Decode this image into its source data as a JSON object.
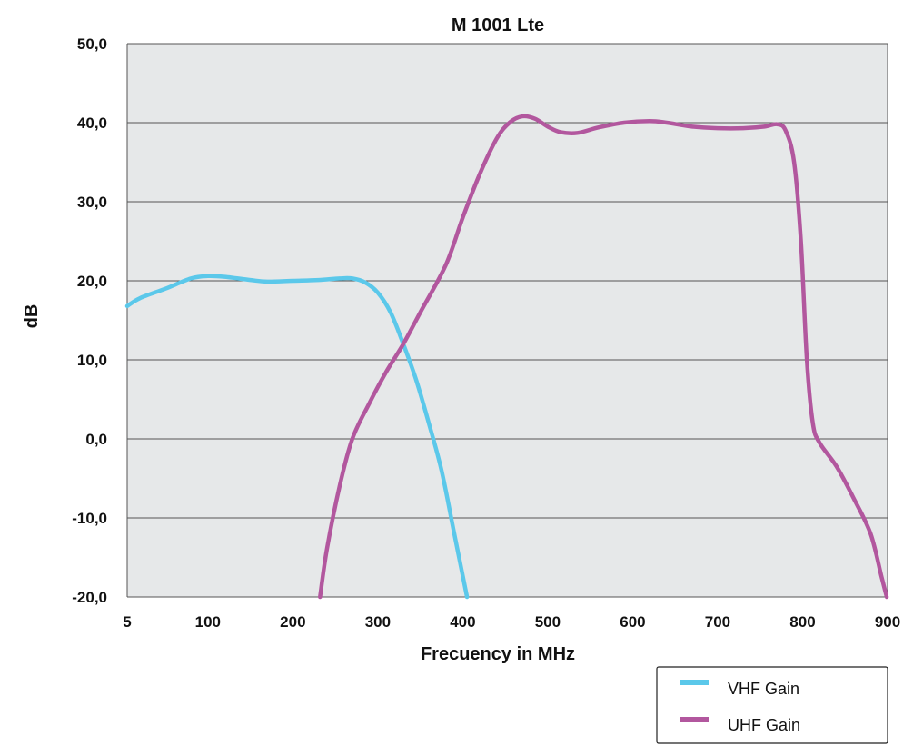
{
  "chart_data": {
    "type": "line",
    "title": "M 1001 Lte",
    "xlabel": "Frecuency in MHz",
    "ylabel": "dB",
    "xlim": [
      5,
      900
    ],
    "ylim": [
      -20,
      50
    ],
    "x_ticks": [
      5,
      100,
      200,
      300,
      400,
      500,
      600,
      700,
      800,
      900
    ],
    "x_tick_labels": [
      "5",
      "100",
      "200",
      "300",
      "400",
      "500",
      "600",
      "700",
      "800",
      "900"
    ],
    "y_ticks": [
      -20,
      -10,
      0,
      10,
      20,
      30,
      40,
      50
    ],
    "y_tick_labels": [
      "-20,0",
      "-10,0",
      "0,0",
      "10,0",
      "20,0",
      "30,0",
      "40,0",
      "50,0"
    ],
    "grid": true,
    "legend_position": "bottom-right",
    "plot_background": "#e6e8e9",
    "series": [
      {
        "name": "VHF Gain",
        "color": "#5bc8ea",
        "points": [
          [
            5,
            16.8
          ],
          [
            20,
            17.8
          ],
          [
            50,
            19.0
          ],
          [
            80,
            20.3
          ],
          [
            100,
            20.6
          ],
          [
            120,
            20.5
          ],
          [
            150,
            20.1
          ],
          [
            170,
            19.9
          ],
          [
            200,
            20.0
          ],
          [
            230,
            20.1
          ],
          [
            255,
            20.3
          ],
          [
            270,
            20.3
          ],
          [
            285,
            19.8
          ],
          [
            300,
            18.5
          ],
          [
            315,
            16.0
          ],
          [
            330,
            12.0
          ],
          [
            345,
            7.5
          ],
          [
            360,
            2.0
          ],
          [
            375,
            -4.0
          ],
          [
            390,
            -12.0
          ],
          [
            405,
            -20.0
          ]
        ]
      },
      {
        "name": "UHF Gain",
        "color": "#b2579e",
        "points": [
          [
            232,
            -20.0
          ],
          [
            240,
            -14.0
          ],
          [
            255,
            -6.0
          ],
          [
            270,
            0.0
          ],
          [
            290,
            4.5
          ],
          [
            310,
            8.5
          ],
          [
            330,
            12.0
          ],
          [
            350,
            16.0
          ],
          [
            380,
            22.0
          ],
          [
            400,
            28.0
          ],
          [
            420,
            33.5
          ],
          [
            440,
            38.0
          ],
          [
            455,
            40.0
          ],
          [
            470,
            40.8
          ],
          [
            485,
            40.5
          ],
          [
            500,
            39.5
          ],
          [
            515,
            38.8
          ],
          [
            535,
            38.7
          ],
          [
            560,
            39.4
          ],
          [
            590,
            40.0
          ],
          [
            620,
            40.2
          ],
          [
            640,
            40.0
          ],
          [
            670,
            39.5
          ],
          [
            700,
            39.3
          ],
          [
            730,
            39.3
          ],
          [
            755,
            39.5
          ],
          [
            770,
            39.8
          ],
          [
            780,
            39.0
          ],
          [
            790,
            35.0
          ],
          [
            798,
            25.0
          ],
          [
            805,
            10.0
          ],
          [
            812,
            2.0
          ],
          [
            820,
            -0.5
          ],
          [
            840,
            -3.5
          ],
          [
            860,
            -7.5
          ],
          [
            880,
            -12.0
          ],
          [
            893,
            -17.5
          ],
          [
            899,
            -20.0
          ]
        ]
      }
    ]
  }
}
